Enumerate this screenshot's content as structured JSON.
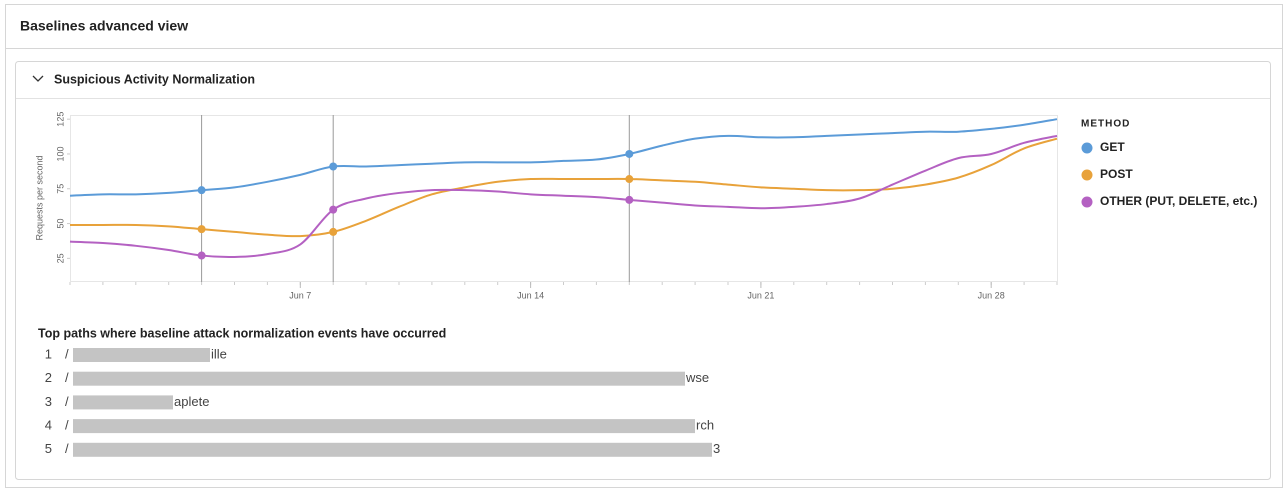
{
  "header": {
    "title": "Baselines advanced view"
  },
  "panel": {
    "title": "Suspicious Activity Normalization"
  },
  "chart_data": {
    "type": "line",
    "y_label": "Requests per second",
    "legend_title": "METHOD",
    "legend": "right",
    "x": [
      "May 31",
      "Jun 1",
      "Jun 2",
      "Jun 3",
      "Jun 4",
      "Jun 5",
      "Jun 6",
      "Jun 7",
      "Jun 8",
      "Jun 9",
      "Jun 10",
      "Jun 11",
      "Jun 12",
      "Jun 13",
      "Jun 14",
      "Jun 15",
      "Jun 16",
      "Jun 17",
      "Jun 18",
      "Jun 19",
      "Jun 20",
      "Jun 21",
      "Jun 22",
      "Jun 23",
      "Jun 24",
      "Jun 25",
      "Jun 26",
      "Jun 27",
      "Jun 28",
      "Jun 29",
      "Jun 30"
    ],
    "xlim": [
      "May 31",
      "Jun 30"
    ],
    "xticks": [
      "Jun 7",
      "Jun 14",
      "Jun 21",
      "Jun 28"
    ],
    "markers": [
      "Jun 4",
      "Jun 8",
      "Jun 17"
    ],
    "ylim": [
      8,
      128
    ],
    "yticks": [
      25,
      50,
      75,
      100,
      125
    ],
    "series": [
      {
        "name": "GET",
        "color": "#5b9bd8",
        "values": [
          70,
          71,
          71,
          72,
          74,
          76,
          80,
          85,
          91,
          91,
          92,
          93,
          94,
          94,
          94,
          95,
          96,
          100,
          106,
          111,
          113,
          112,
          112,
          113,
          114,
          115,
          116,
          116,
          118,
          121,
          125
        ]
      },
      {
        "name": "POST",
        "color": "#e8a23a",
        "values": [
          49,
          49,
          49,
          48,
          46,
          44,
          42,
          41,
          44,
          52,
          62,
          71,
          76,
          80,
          82,
          82,
          82,
          82,
          81,
          80,
          78,
          76,
          75,
          74,
          74,
          75,
          78,
          83,
          92,
          104,
          111
        ]
      },
      {
        "name": "OTHER (PUT, DELETE, etc.)",
        "color": "#b461c2",
        "values": [
          37,
          36,
          34,
          31,
          27,
          26,
          28,
          35,
          60,
          68,
          72,
          74,
          74,
          73,
          71,
          70,
          69,
          67,
          65,
          63,
          62,
          61,
          62,
          64,
          68,
          78,
          88,
          97,
          100,
          108,
          113
        ]
      }
    ]
  },
  "paths": {
    "title": "Top paths where baseline attack normalization events have occurred",
    "items": [
      {
        "rank": "1",
        "prefix": "/",
        "suffix": "ille"
      },
      {
        "rank": "2",
        "prefix": "/",
        "suffix": "wse"
      },
      {
        "rank": "3",
        "prefix": "/",
        "suffix": "aplete"
      },
      {
        "rank": "4",
        "prefix": "/",
        "suffix": "rch"
      },
      {
        "rank": "5",
        "prefix": "/",
        "suffix": "3"
      }
    ]
  }
}
